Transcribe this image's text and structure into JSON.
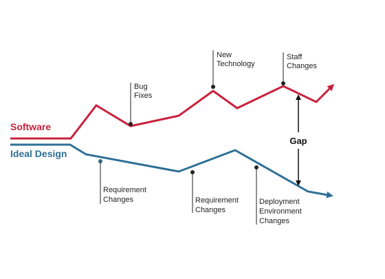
{
  "colors": {
    "software": "#c8213d",
    "ideal_design": "#2e6f96",
    "annotation_line": "#222222",
    "gap": "#111111"
  },
  "software_label": "Software",
  "ideal_design_label": "Ideal Design",
  "gap_label": "Gap",
  "annotations": {
    "bug_fixes": [
      "Bug",
      "Fixes"
    ],
    "new_technology": [
      "New",
      "Technology"
    ],
    "staff_changes": [
      "Staff",
      "Changes"
    ],
    "requirement_changes_1": [
      "Requirement",
      "Changes"
    ],
    "requirement_changes_2": [
      "Requirement",
      "Changes"
    ],
    "deployment_environment_changes": [
      "Deployment",
      "Environment",
      "Changes"
    ]
  }
}
